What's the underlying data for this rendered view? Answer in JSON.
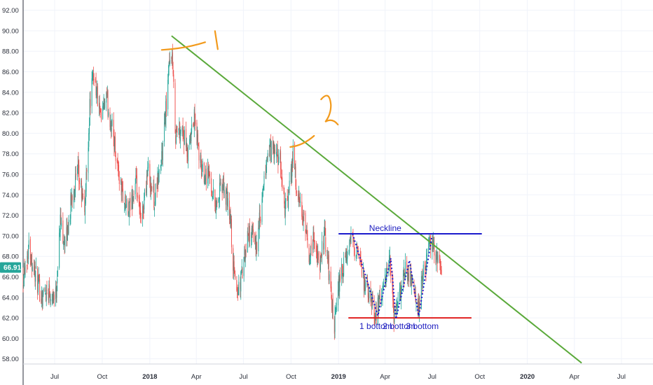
{
  "chart_data": {
    "type": "candlestick",
    "title": "",
    "ylim": [
      57.5,
      93
    ],
    "xlim": [
      "2017-05-01",
      "2020-08-31"
    ],
    "grid": true,
    "y_ticks": [
      "58.00",
      "60.00",
      "62.00",
      "64.00",
      "66.00",
      "68.00",
      "70.00",
      "72.00",
      "74.00",
      "76.00",
      "78.00",
      "80.00",
      "82.00",
      "84.00",
      "86.00",
      "88.00",
      "90.00",
      "92.00"
    ],
    "x_ticks": [
      {
        "label": "Jul",
        "date": "2017-07-01",
        "bold": false
      },
      {
        "label": "Oct",
        "date": "2017-10-01",
        "bold": false
      },
      {
        "label": "2018",
        "date": "2018-01-01",
        "bold": true
      },
      {
        "label": "Apr",
        "date": "2018-04-01",
        "bold": false
      },
      {
        "label": "Jul",
        "date": "2018-07-01",
        "bold": false
      },
      {
        "label": "Oct",
        "date": "2018-10-01",
        "bold": false
      },
      {
        "label": "2019",
        "date": "2019-01-01",
        "bold": true
      },
      {
        "label": "Apr",
        "date": "2019-04-01",
        "bold": false
      },
      {
        "label": "Jul",
        "date": "2019-07-01",
        "bold": false
      },
      {
        "label": "Oct",
        "date": "2019-10-01",
        "bold": false
      },
      {
        "label": "2020",
        "date": "2020-01-01",
        "bold": true
      },
      {
        "label": "Apr",
        "date": "2020-04-01",
        "bold": false
      },
      {
        "label": "Jul",
        "date": "2020-07-01",
        "bold": false
      }
    ],
    "current_price": "66.91",
    "price_path": [
      [
        "2017-05-01",
        66.3
      ],
      [
        "2017-05-12",
        69.0
      ],
      [
        "2017-05-28",
        65.5
      ],
      [
        "2017-06-05",
        64.2
      ],
      [
        "2017-06-20",
        64.8
      ],
      [
        "2017-07-03",
        64.0
      ],
      [
        "2017-07-12",
        71.5
      ],
      [
        "2017-07-22",
        69.0
      ],
      [
        "2017-08-05",
        74.5
      ],
      [
        "2017-08-15",
        76.0
      ],
      [
        "2017-08-28",
        72.5
      ],
      [
        "2017-09-08",
        83.5
      ],
      [
        "2017-09-15",
        86.0
      ],
      [
        "2017-09-28",
        81.0
      ],
      [
        "2017-10-08",
        83.5
      ],
      [
        "2017-10-22",
        80.0
      ],
      [
        "2017-11-05",
        75.0
      ],
      [
        "2017-11-20",
        72.0
      ],
      [
        "2017-12-05",
        75.0
      ],
      [
        "2017-12-15",
        71.0
      ],
      [
        "2017-12-28",
        76.5
      ],
      [
        "2018-01-10",
        73.5
      ],
      [
        "2018-01-25",
        78.0
      ],
      [
        "2018-02-06",
        85.5
      ],
      [
        "2018-02-12",
        88.2
      ],
      [
        "2018-02-20",
        80.0
      ],
      [
        "2018-03-05",
        80.5
      ],
      [
        "2018-03-15",
        77.5
      ],
      [
        "2018-03-28",
        81.5
      ],
      [
        "2018-04-10",
        76.5
      ],
      [
        "2018-04-25",
        76.0
      ],
      [
        "2018-05-08",
        73.0
      ],
      [
        "2018-05-22",
        75.0
      ],
      [
        "2018-06-05",
        72.0
      ],
      [
        "2018-06-12",
        66.5
      ],
      [
        "2018-06-20",
        64.5
      ],
      [
        "2018-07-01",
        67.0
      ],
      [
        "2018-07-12",
        70.5
      ],
      [
        "2018-07-25",
        69.0
      ],
      [
        "2018-08-05",
        72.5
      ],
      [
        "2018-08-15",
        77.5
      ],
      [
        "2018-08-25",
        78.5
      ],
      [
        "2018-09-10",
        77.0
      ],
      [
        "2018-09-20",
        72.5
      ],
      [
        "2018-09-30",
        75.0
      ],
      [
        "2018-10-05",
        78.8
      ],
      [
        "2018-10-12",
        74.0
      ],
      [
        "2018-10-25",
        71.5
      ],
      [
        "2018-11-05",
        68.0
      ],
      [
        "2018-11-15",
        70.0
      ],
      [
        "2018-11-25",
        66.5
      ],
      [
        "2018-12-05",
        70.5
      ],
      [
        "2018-12-15",
        65.5
      ],
      [
        "2018-12-24",
        60.8
      ],
      [
        "2019-01-02",
        65.5
      ],
      [
        "2019-01-15",
        67.5
      ],
      [
        "2019-01-28",
        70.0
      ],
      [
        "2019-02-10",
        67.5
      ],
      [
        "2019-02-22",
        65.0
      ],
      [
        "2019-03-05",
        63.5
      ],
      [
        "2019-03-15",
        62.5
      ],
      [
        "2019-03-28",
        64.5
      ],
      [
        "2019-04-10",
        67.5
      ],
      [
        "2019-04-18",
        62.0
      ],
      [
        "2019-04-30",
        64.5
      ],
      [
        "2019-05-10",
        67.0
      ],
      [
        "2019-05-22",
        66.0
      ],
      [
        "2019-06-03",
        62.5
      ],
      [
        "2019-06-15",
        66.5
      ],
      [
        "2019-06-28",
        69.5
      ],
      [
        "2019-07-10",
        68.0
      ],
      [
        "2019-07-20",
        66.9
      ]
    ]
  },
  "annotations": {
    "trendline": {
      "start": [
        "2018-02-12",
        89.5
      ],
      "end": [
        "2020-04-15",
        57.6
      ],
      "color": "#5aa93a"
    },
    "neckline": {
      "label": "Neckline",
      "y": 70.2,
      "start": "2019-01-01",
      "end": "2019-10-05",
      "color": "#1a1acc"
    },
    "support": {
      "y": 62.0,
      "start": "2019-01-20",
      "end": "2019-09-15",
      "color": "#e02020"
    },
    "w_pattern": {
      "points": [
        [
          "2019-01-28",
          70.2
        ],
        [
          "2019-03-18",
          62.2
        ],
        [
          "2019-04-12",
          67.8
        ],
        [
          "2019-04-22",
          61.9
        ],
        [
          "2019-05-18",
          67.6
        ],
        [
          "2019-06-05",
          62.2
        ],
        [
          "2019-06-30",
          69.8
        ]
      ],
      "color": "#1a1acc"
    },
    "bottom_labels": [
      "1 bottom",
      "2 bottom",
      "3 bottom"
    ],
    "bottom_label_dates": [
      "2019-03-14",
      "2019-04-28",
      "2019-06-12"
    ],
    "handwritten_marks": [
      "1",
      "2"
    ],
    "handwriting_color": "#f29a1c"
  },
  "colors": {
    "up": "#26a69a",
    "down": "#ef5350",
    "price_badge": "#26a69a"
  }
}
